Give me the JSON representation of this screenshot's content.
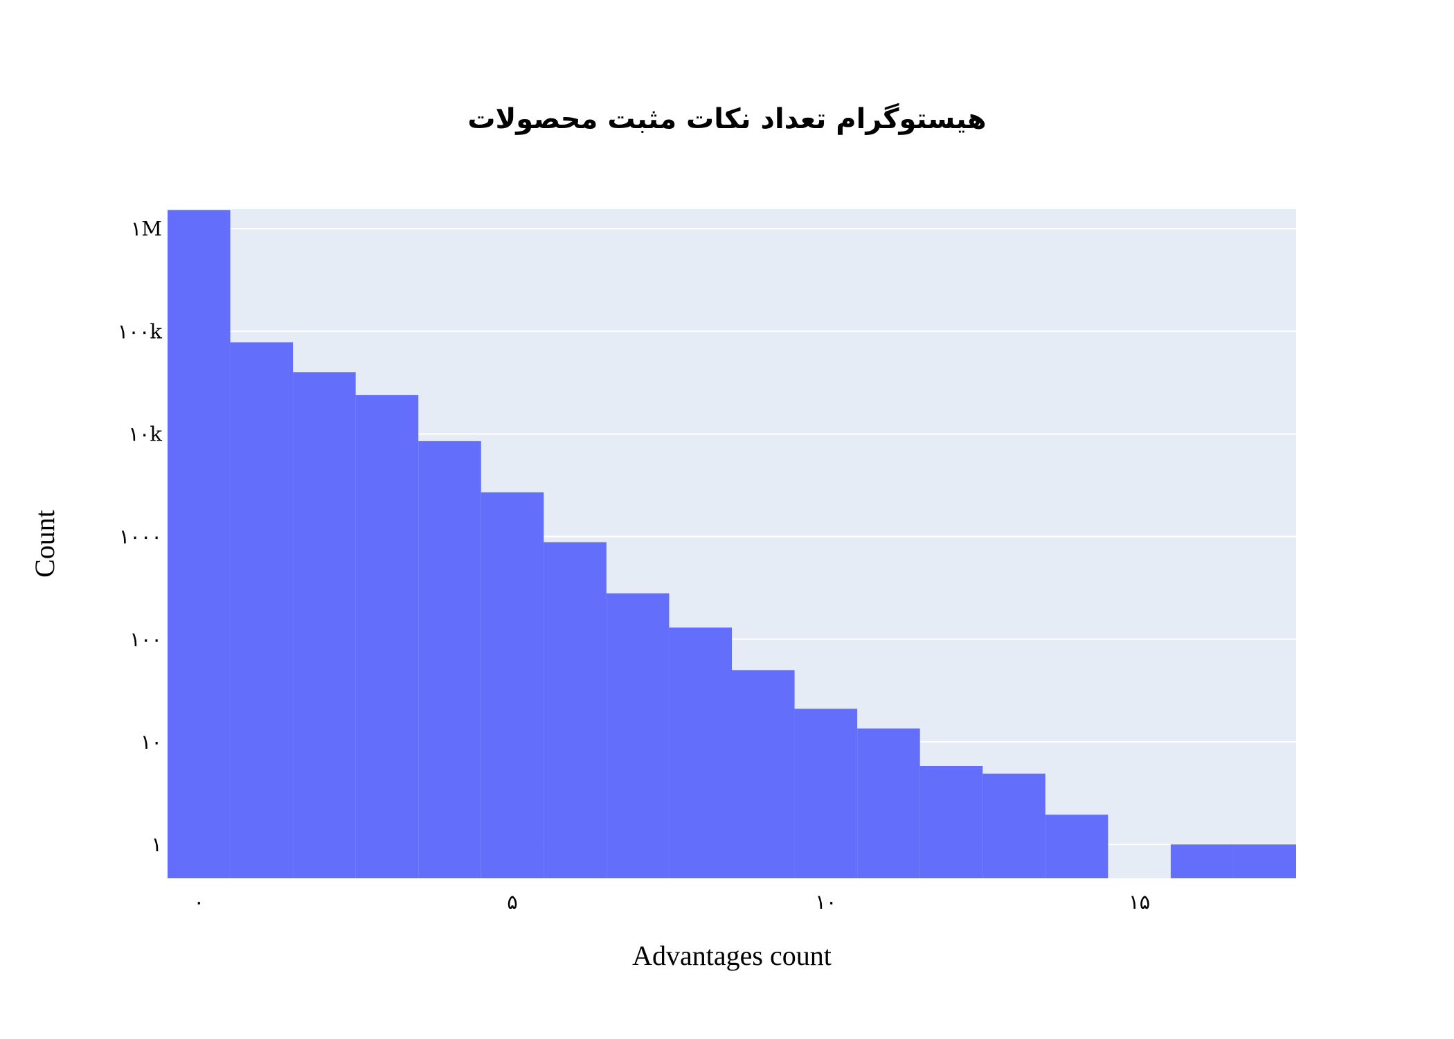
{
  "chart_data": {
    "type": "bar",
    "title": "هیستوگرام تعداد نکات مثبت محصولات",
    "xlabel": "Advantages count",
    "ylabel": "Count",
    "y_scale": "log",
    "bins": [
      0,
      1,
      2,
      3,
      4,
      5,
      6,
      7,
      8,
      9,
      10,
      11,
      12,
      13,
      14,
      15,
      16,
      17
    ],
    "values": [
      1520000,
      78000,
      40000,
      24000,
      8500,
      2700,
      880,
      280,
      130,
      50,
      21,
      13.5,
      5.8,
      4.9,
      1.95,
      0,
      1,
      1
    ],
    "x_ticks": [
      {
        "value": 0,
        "label": "۰"
      },
      {
        "value": 5,
        "label": "۵"
      },
      {
        "value": 10,
        "label": "۱۰"
      },
      {
        "value": 15,
        "label": "۱۵"
      }
    ],
    "y_ticks": [
      {
        "value": 1,
        "label": "۱"
      },
      {
        "value": 10,
        "label": "۱۰"
      },
      {
        "value": 100,
        "label": "۱۰۰"
      },
      {
        "value": 1000,
        "label": "۱۰۰۰"
      },
      {
        "value": 10000,
        "label": "۱۰k"
      },
      {
        "value": 100000,
        "label": "۱۰۰k"
      },
      {
        "value": 1000000,
        "label": "۱M"
      }
    ],
    "xlim": [
      -0.5,
      17.5
    ],
    "ylog_range": [
      -0.33,
      6.19
    ],
    "grid": true,
    "colors": {
      "bar": "#636efa",
      "plot_background": "#e5ecf6",
      "grid": "#ffffff"
    }
  }
}
